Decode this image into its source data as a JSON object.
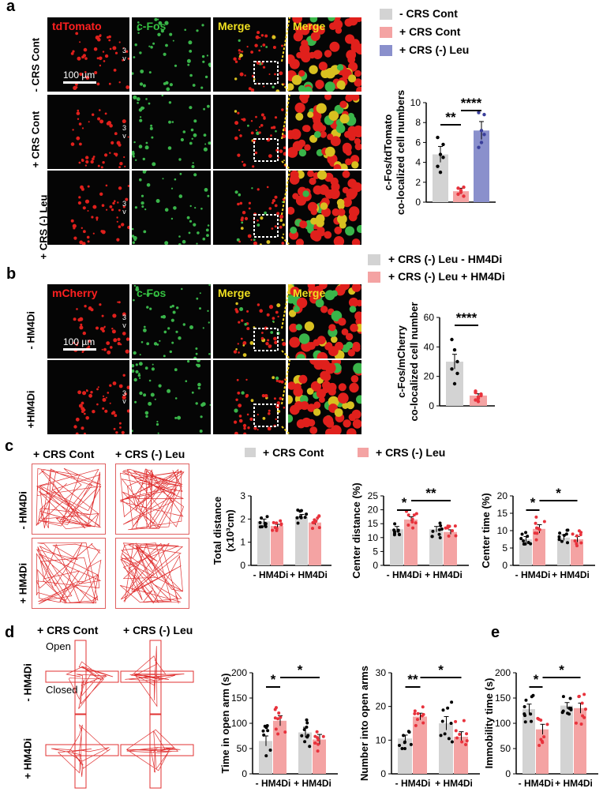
{
  "panels": {
    "a": {
      "label": "a",
      "channels": [
        "tdTomato",
        "c-Fos",
        "Merge",
        "Merge"
      ],
      "rows": [
        "- CRS Cont",
        "+ CRS Cont",
        "+ CRS (-) Leu"
      ],
      "third_ventricle": "3\nv",
      "scalebar": "100 µm",
      "legend": [
        "- CRS Cont",
        "+ CRS Cont",
        "+ CRS (-) Leu"
      ]
    },
    "b": {
      "label": "b",
      "channels": [
        "mCherry",
        "c-Fos",
        "Merge",
        "Merge"
      ],
      "rows": [
        "- HM4Di",
        "+HM4Di"
      ],
      "scalebar": "100 µm",
      "legend": [
        "+ CRS (-) Leu - HM4Di",
        "+ CRS (-) Leu + HM4Di"
      ]
    },
    "c": {
      "label": "c",
      "col_headers": [
        "+ CRS Cont",
        "+ CRS (-) Leu"
      ],
      "rows": [
        "- HM4Di",
        "+ HM4Di"
      ],
      "legend": [
        "+ CRS Cont",
        "+ CRS (-) Leu"
      ]
    },
    "d": {
      "label": "d",
      "col_headers": [
        "+ CRS Cont",
        "+ CRS (-) Leu"
      ],
      "rows": [
        "- HM4Di",
        "+ HM4Di"
      ],
      "open_label": "Open",
      "closed_label": "Closed"
    },
    "e": {
      "label": "e"
    }
  },
  "colors": {
    "grey": "#d3d3d3",
    "pink": "#f4a3a3",
    "blue": "#8a90cc",
    "red": "#e8323c",
    "black": "#000000",
    "track": "#e03030"
  },
  "chart_data": [
    {
      "id": "a-bar",
      "type": "bar",
      "ylabel": [
        "c-Fos/tdTomato",
        "co-localized cell numbers"
      ],
      "ylim": [
        0,
        10
      ],
      "yticks": [
        0,
        2,
        4,
        6,
        8,
        10
      ],
      "categories": [
        "- CRS Cont",
        "+ CRS Cont",
        "+ CRS (-) Leu"
      ],
      "values": [
        4.8,
        1.1,
        7.2
      ],
      "errors": [
        0.8,
        0.3,
        0.9
      ],
      "points": [
        [
          3.6,
          4.8,
          5.8,
          6.5,
          3.0,
          4.5
        ],
        [
          0.8,
          1.2,
          0.6,
          1.4,
          1.0,
          1.5
        ],
        [
          5.5,
          7.2,
          8.8,
          9.0,
          6.0,
          6.8
        ]
      ],
      "bar_colors": [
        "#d3d3d3",
        "#f4a3a3",
        "#8a90cc"
      ],
      "dot_colors": [
        "#000000",
        "#e8323c",
        "#3a3f9b"
      ],
      "significance": [
        {
          "from": 0,
          "to": 1,
          "label": "**"
        },
        {
          "from": 1,
          "to": 2,
          "label": "****"
        }
      ]
    },
    {
      "id": "b-bar",
      "type": "bar",
      "ylabel": [
        "c-Fos/mCherry",
        "co-localized cell number"
      ],
      "ylim": [
        0,
        60
      ],
      "yticks": [
        0,
        20,
        40,
        60
      ],
      "categories": [
        "+ CRS (-) Leu - HM4Di",
        "+ CRS (-) Leu + HM4Di"
      ],
      "values": [
        30,
        7
      ],
      "errors": [
        5,
        1.2
      ],
      "points": [
        [
          45,
          38,
          30,
          25,
          15,
          22
        ],
        [
          4,
          6,
          8,
          10,
          5,
          7,
          9,
          3
        ]
      ],
      "bar_colors": [
        "#d3d3d3",
        "#f4a3a3"
      ],
      "dot_colors": [
        "#000000",
        "#e8323c"
      ],
      "significance": [
        {
          "from": 0,
          "to": 1,
          "label": "****"
        }
      ]
    },
    {
      "id": "c-total",
      "type": "bar",
      "ylabel": [
        "Total distance",
        "(x10³cm)"
      ],
      "ylim": [
        0,
        3
      ],
      "yticks": [
        0,
        1,
        2,
        3
      ],
      "groups": [
        "- HM4Di",
        "+ HM4Di"
      ],
      "series": [
        {
          "name": "+ CRS Cont",
          "values": [
            1.9,
            2.1
          ],
          "errors": [
            0.1,
            0.1
          ]
        },
        {
          "name": "+ CRS (-) Leu",
          "values": [
            1.7,
            1.85
          ],
          "errors": [
            0.07,
            0.1
          ]
        }
      ],
      "significance": []
    },
    {
      "id": "c-center-dist",
      "type": "bar",
      "ylabel": [
        "Center distance (%)"
      ],
      "ylim": [
        0,
        25
      ],
      "yticks": [
        0,
        5,
        10,
        15,
        20,
        25
      ],
      "groups": [
        "- HM4Di",
        "+ HM4Di"
      ],
      "series": [
        {
          "name": "+ CRS Cont",
          "values": [
            13,
            13
          ],
          "errors": [
            1,
            1
          ]
        },
        {
          "name": "+ CRS (-) Leu",
          "values": [
            16.5,
            12
          ],
          "errors": [
            1,
            0.8
          ]
        }
      ],
      "significance": [
        {
          "from": [
            0,
            0
          ],
          "to": [
            0,
            1
          ],
          "label": "*"
        },
        {
          "from": [
            0,
            1
          ],
          "to": [
            1,
            1
          ],
          "label": "**"
        }
      ]
    },
    {
      "id": "c-center-time",
      "type": "bar",
      "ylabel": [
        "Center time (%)"
      ],
      "ylim": [
        0,
        20
      ],
      "yticks": [
        0,
        5,
        10,
        15,
        20
      ],
      "groups": [
        "- HM4Di",
        "+ HM4Di"
      ],
      "series": [
        {
          "name": "+ CRS Cont",
          "values": [
            7.5,
            8
          ],
          "errors": [
            0.8,
            0.8
          ]
        },
        {
          "name": "+ CRS (-) Leu",
          "values": [
            10.5,
            7.5
          ],
          "errors": [
            1.2,
            0.8
          ]
        }
      ],
      "significance": [
        {
          "from": [
            0,
            0
          ],
          "to": [
            0,
            1
          ],
          "label": "*"
        },
        {
          "from": [
            0,
            1
          ],
          "to": [
            1,
            1
          ],
          "label": "*"
        }
      ]
    },
    {
      "id": "d-open-time",
      "type": "bar",
      "ylabel": [
        "Time in open arm (s)"
      ],
      "ylim": [
        0,
        200
      ],
      "yticks": [
        0,
        50,
        100,
        150,
        200
      ],
      "groups": [
        "- HM4Di",
        "+ HM4Di"
      ],
      "series": [
        {
          "name": "+ CRS Cont",
          "values": [
            65,
            82
          ],
          "errors": [
            10,
            10
          ]
        },
        {
          "name": "+ CRS (-) Leu",
          "values": [
            105,
            68
          ],
          "errors": [
            10,
            10
          ]
        }
      ],
      "significance": [
        {
          "from": [
            0,
            0
          ],
          "to": [
            0,
            1
          ],
          "label": "*"
        },
        {
          "from": [
            0,
            1
          ],
          "to": [
            1,
            1
          ],
          "label": "*"
        }
      ]
    },
    {
      "id": "d-open-number",
      "type": "bar",
      "ylabel": [
        "Number into open arms"
      ],
      "ylim": [
        0,
        30
      ],
      "yticks": [
        0,
        10,
        20,
        30
      ],
      "groups": [
        "- HM4Di",
        "+ HM4Di"
      ],
      "series": [
        {
          "name": "+ CRS Cont",
          "values": [
            10.5,
            15
          ],
          "errors": [
            1,
            2
          ]
        },
        {
          "name": "+ CRS (-) Leu",
          "values": [
            17,
            11
          ],
          "errors": [
            1,
            1.5
          ]
        }
      ],
      "significance": [
        {
          "from": [
            0,
            0
          ],
          "to": [
            0,
            1
          ],
          "label": "**"
        },
        {
          "from": [
            0,
            1
          ],
          "to": [
            1,
            1
          ],
          "label": "*"
        }
      ]
    },
    {
      "id": "e-immobility",
      "type": "bar",
      "ylabel": [
        "Immobility time (s)"
      ],
      "ylim": [
        0,
        200
      ],
      "yticks": [
        0,
        50,
        100,
        150,
        200
      ],
      "groups": [
        "- HM4Di",
        "+ HM4Di"
      ],
      "series": [
        {
          "name": "+ CRS Cont",
          "values": [
            128,
            135
          ],
          "errors": [
            10,
            6
          ]
        },
        {
          "name": "+ CRS (-) Leu",
          "values": [
            88,
            130
          ],
          "errors": [
            10,
            10
          ]
        }
      ],
      "significance": [
        {
          "from": [
            0,
            0
          ],
          "to": [
            0,
            1
          ],
          "label": "*"
        },
        {
          "from": [
            0,
            1
          ],
          "to": [
            1,
            1
          ],
          "label": "*"
        }
      ]
    }
  ]
}
